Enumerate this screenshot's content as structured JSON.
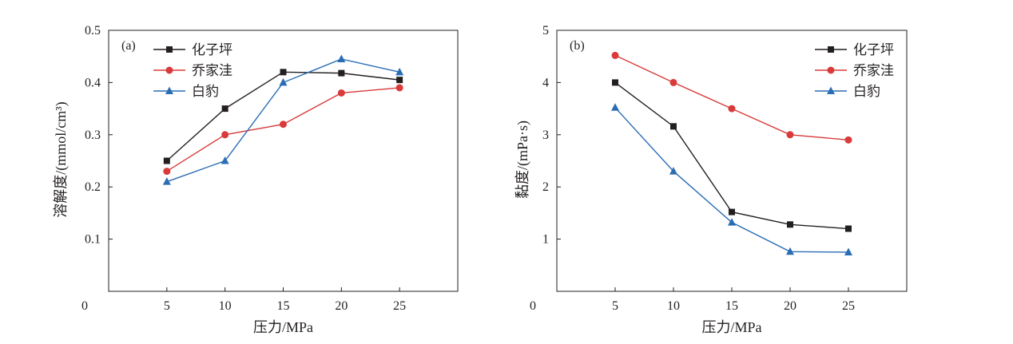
{
  "chart_data": [
    {
      "type": "line",
      "panel_label": "(a)",
      "xlabel": "压力/MPa",
      "ylabel": "溶解度/(mmol/cm³)",
      "x": [
        5,
        10,
        15,
        20,
        25
      ],
      "xlim": [
        0,
        30
      ],
      "ylim": [
        0,
        0.5
      ],
      "xticks": [
        5,
        10,
        15,
        20,
        25
      ],
      "yticks": [
        0.1,
        0.2,
        0.3,
        0.4,
        0.5
      ],
      "xtick_labels": [
        "5",
        "10",
        "15",
        "20",
        "25"
      ],
      "ytick_labels": [
        "0.1",
        "0.2",
        "0.3",
        "0.4",
        "0.5"
      ],
      "origin_label": "0",
      "grid": false,
      "legend_position": "top-left",
      "series": [
        {
          "name": "化子坪",
          "color": "#231f20",
          "marker": "square",
          "values": [
            0.25,
            0.35,
            0.42,
            0.418,
            0.405
          ]
        },
        {
          "name": "乔家洼",
          "color": "#d93a3a",
          "marker": "circle",
          "values": [
            0.23,
            0.3,
            0.32,
            0.38,
            0.39
          ]
        },
        {
          "name": "白豹",
          "color": "#2a6db5",
          "marker": "triangle",
          "values": [
            0.21,
            0.25,
            0.4,
            0.445,
            0.42
          ]
        }
      ]
    },
    {
      "type": "line",
      "panel_label": "(b)",
      "xlabel": "压力/MPa",
      "ylabel": "黏度/(mPa·s)",
      "x": [
        5,
        10,
        15,
        20,
        25
      ],
      "xlim": [
        0,
        30
      ],
      "ylim": [
        0,
        5
      ],
      "xticks": [
        5,
        10,
        15,
        20,
        25
      ],
      "yticks": [
        1,
        2,
        3,
        4,
        5
      ],
      "xtick_labels": [
        "5",
        "10",
        "15",
        "20",
        "25"
      ],
      "ytick_labels": [
        "1",
        "2",
        "3",
        "4",
        "5"
      ],
      "origin_label": "0",
      "grid": false,
      "legend_position": "top-right",
      "series": [
        {
          "name": "化子坪",
          "color": "#231f20",
          "marker": "square",
          "values": [
            4.0,
            3.16,
            1.52,
            1.28,
            1.2
          ]
        },
        {
          "name": "乔家洼",
          "color": "#d93a3a",
          "marker": "circle",
          "values": [
            4.52,
            4.0,
            3.5,
            3.0,
            2.9
          ]
        },
        {
          "name": "白豹",
          "color": "#2a6db5",
          "marker": "triangle",
          "values": [
            3.52,
            2.3,
            1.32,
            0.76,
            0.75
          ]
        }
      ]
    }
  ]
}
